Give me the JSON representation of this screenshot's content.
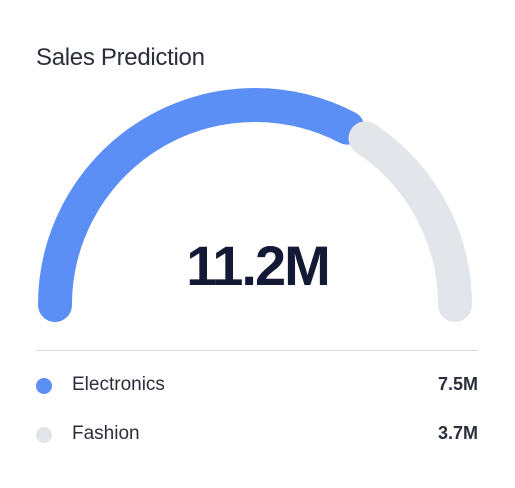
{
  "widget": {
    "title": "Sales Prediction",
    "total": "11.2M"
  },
  "legend": {
    "items": [
      {
        "label": "Electronics",
        "value": "7.5M",
        "color": "#5b8ff5"
      },
      {
        "label": "Fashion",
        "value": "3.7M",
        "color": "#e2e5e9"
      }
    ]
  },
  "gauge": {
    "segments": [
      {
        "name": "Electronics",
        "value": 7.5,
        "color": "#5b8ff5"
      },
      {
        "name": "Fashion",
        "value": 3.7,
        "color": "#e2e5e9"
      }
    ]
  }
}
